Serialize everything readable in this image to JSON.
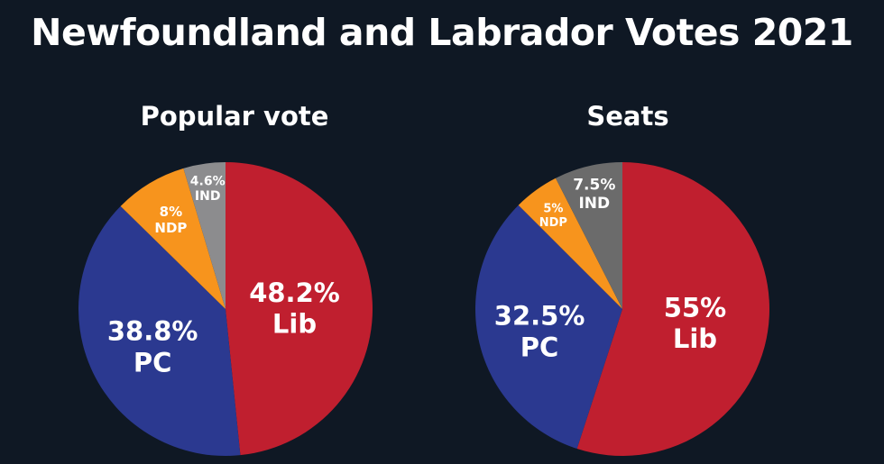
{
  "title": "Newfoundland and Labrador Votes 2021",
  "colors": {
    "background": "#0f1824",
    "Lib": "#c01f2f",
    "PC": "#2b3990",
    "NDP": "#f7941d",
    "IND_popular": "#8c8c8e",
    "IND_seats": "#6b6b6b"
  },
  "chart_data": [
    {
      "type": "pie",
      "title": "Popular vote",
      "slices": [
        {
          "label": "Lib",
          "value": 48.2,
          "text": "48.2%"
        },
        {
          "label": "PC",
          "value": 38.8,
          "text": "38.8%"
        },
        {
          "label": "NDP",
          "value": 8,
          "text": "8%"
        },
        {
          "label": "IND",
          "value": 4.6,
          "text": "4.6%"
        }
      ]
    },
    {
      "type": "pie",
      "title": "Seats",
      "slices": [
        {
          "label": "Lib",
          "value": 55,
          "text": "55%"
        },
        {
          "label": "PC",
          "value": 32.5,
          "text": "32.5%"
        },
        {
          "label": "NDP",
          "value": 5,
          "text": "5%"
        },
        {
          "label": "IND",
          "value": 7.5,
          "text": "7.5%"
        }
      ]
    }
  ]
}
